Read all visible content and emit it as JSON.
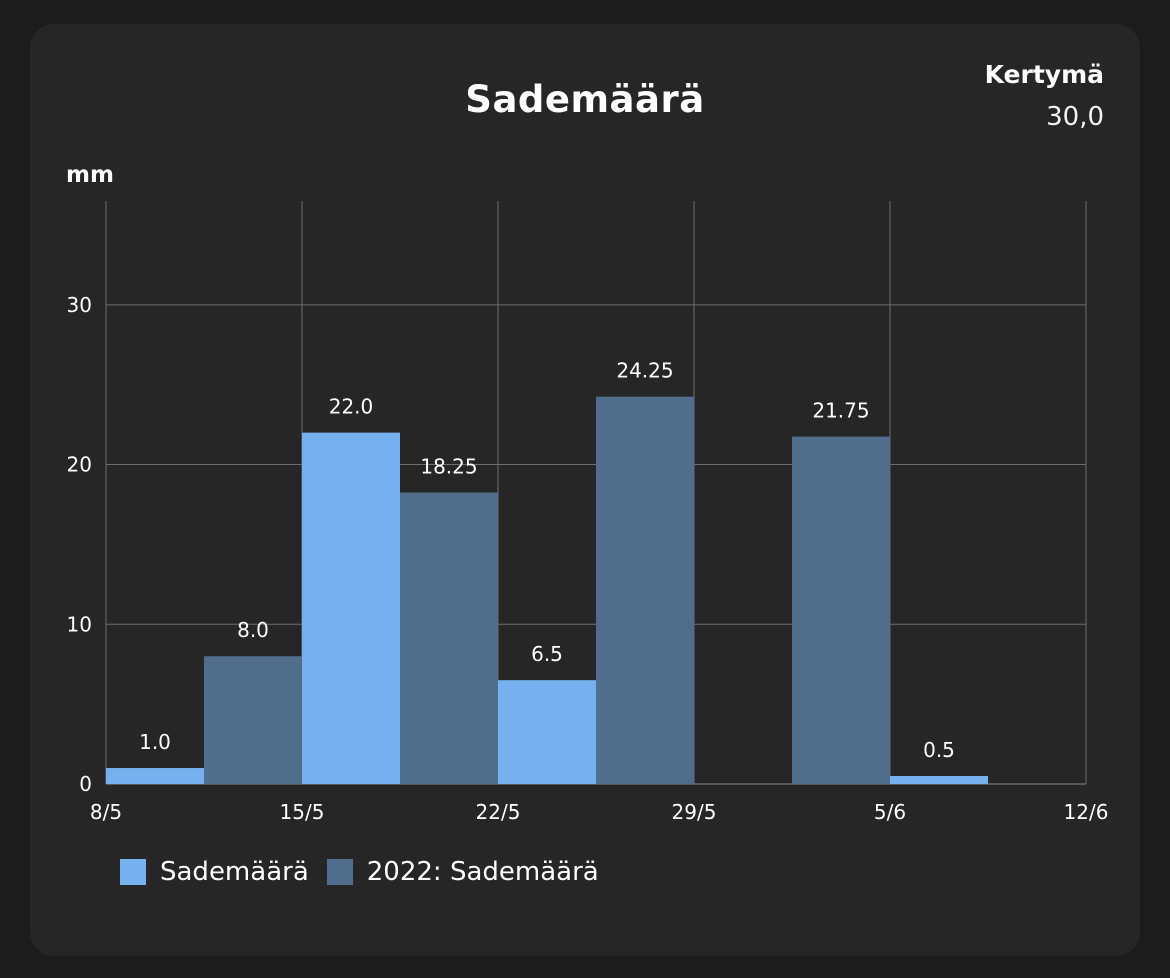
{
  "card": {
    "title": "Sademäärä",
    "total_label": "Kertymä",
    "total_value": "30,0",
    "unit_label": "mm"
  },
  "colors": {
    "background": "#1c1c1c",
    "card": "#262626",
    "series_current": "#76b0ee",
    "series_2022": "#506d8b",
    "grid": "#6e6e6e"
  },
  "chart_data": {
    "type": "bar",
    "title": "Sademäärä",
    "ylabel": "mm",
    "xlabel": "",
    "categories": [
      "8/5",
      "15/5",
      "22/5",
      "29/5",
      "5/6"
    ],
    "x_ticks": [
      "8/5",
      "15/5",
      "22/5",
      "29/5",
      "5/6",
      "12/6"
    ],
    "y_ticks": [
      0,
      10,
      20,
      30
    ],
    "ylim": [
      0,
      36.5
    ],
    "grid": true,
    "legend_position": "bottom-left",
    "series": [
      {
        "name": "Sademäärä",
        "color": "#76b0ee",
        "values": [
          1.0,
          22.0,
          6.5,
          null,
          0.5
        ],
        "labels": [
          "1.0",
          "22.0",
          "6.5",
          "",
          "0.5"
        ]
      },
      {
        "name": "2022: Sademäärä",
        "color": "#506d8b",
        "values": [
          8.0,
          18.25,
          24.25,
          21.75,
          null
        ],
        "labels": [
          "8.0",
          "18.25",
          "24.25",
          "21.75",
          ""
        ]
      }
    ]
  }
}
